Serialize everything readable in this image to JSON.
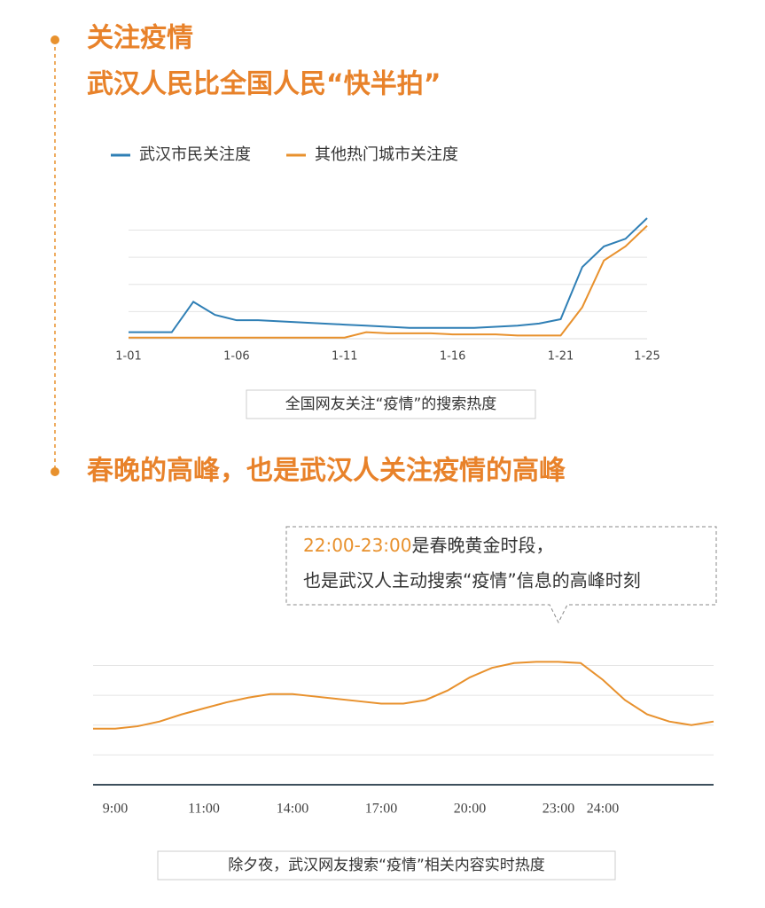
{
  "heading": {
    "line_1": "关注疫情",
    "line_2": "武汉人民比全国人民“快半拍”",
    "section_2": "春晚的高峰，也是武汉人关注疫情的高峰"
  },
  "chart_data": [
    {
      "type": "line",
      "caption": "全国网友关注“疫情”的搜索热度",
      "categories": [
        "1-01",
        null,
        null,
        null,
        null,
        "1-06",
        null,
        null,
        null,
        null,
        "1-11",
        null,
        null,
        null,
        null,
        "1-16",
        null,
        null,
        null,
        null,
        "1-21",
        null,
        null,
        null,
        "1-25"
      ],
      "series": [
        {
          "name": "武汉市民关注度",
          "color": "#2f7fb5",
          "values": [
            6,
            6,
            6,
            34,
            22,
            17,
            17,
            16,
            15,
            14,
            13,
            12,
            11,
            10,
            10,
            10,
            10,
            11,
            12,
            14,
            18,
            66,
            85,
            92,
            111
          ]
        },
        {
          "name": "其他热门城市关注度",
          "color": "#e8912d",
          "values": [
            1,
            1,
            1,
            1,
            1,
            1,
            1,
            1,
            1,
            1,
            1,
            6,
            5,
            5,
            5,
            4,
            4,
            4,
            3,
            3,
            3,
            29,
            72,
            85,
            104
          ]
        }
      ],
      "ylim": [
        0,
        120
      ],
      "yticks": [
        0,
        25,
        50,
        75,
        100
      ],
      "grid": true
    },
    {
      "type": "line",
      "caption": "除夕夜，武汉网友搜索“疫情”相关内容实时热度",
      "annotation": {
        "highlight": "22:00-23:00",
        "text_1": "是春晚黄金时段，",
        "text_2": "也是武汉人主动搜索“疫情”信息的高峰时刻"
      },
      "categories": [
        null,
        "9:00",
        null,
        null,
        null,
        "11:00",
        null,
        null,
        null,
        "14:00",
        null,
        null,
        null,
        "17:00",
        null,
        null,
        null,
        "20:00",
        null,
        null,
        null,
        "23:00",
        null,
        "24:00",
        null,
        null,
        null,
        null,
        null
      ],
      "color": "#e8912d",
      "values": [
        47,
        47,
        49,
        53,
        59,
        64,
        69,
        73,
        76,
        76,
        74,
        72,
        70,
        68,
        68,
        71,
        79,
        90,
        98,
        102,
        103,
        103,
        102,
        88,
        71,
        59,
        53,
        50,
        53
      ],
      "ylim": [
        0,
        110
      ],
      "yticks": [
        0,
        25,
        50,
        75,
        100
      ],
      "grid": true
    }
  ]
}
